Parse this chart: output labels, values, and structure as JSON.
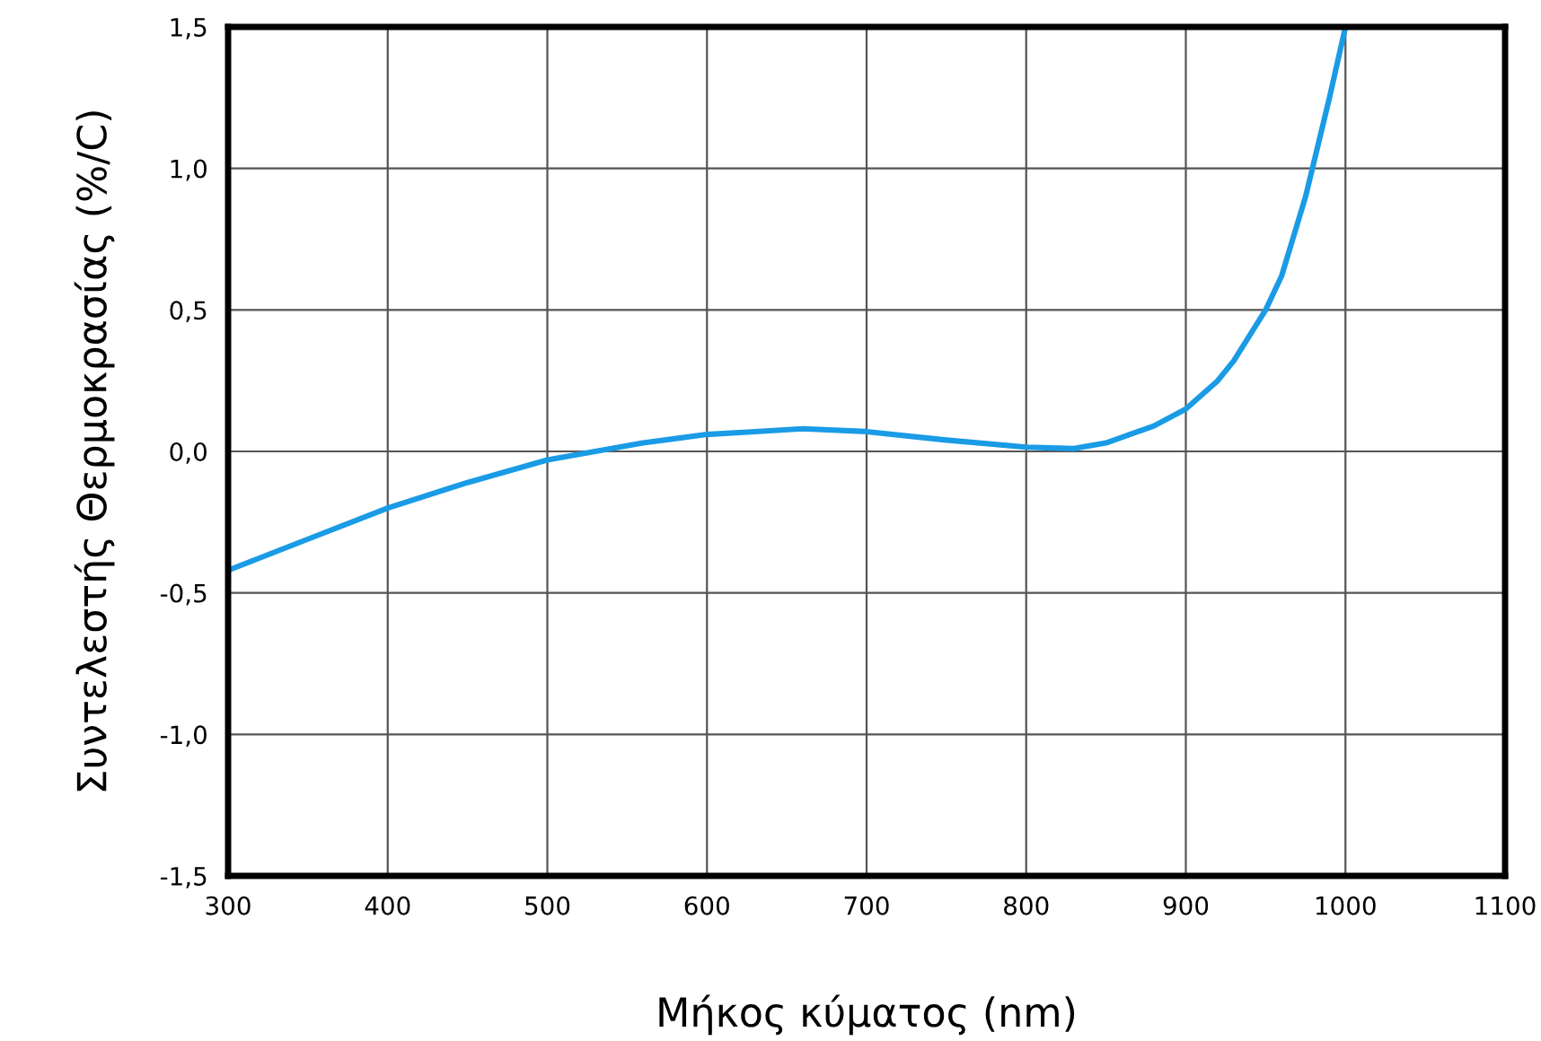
{
  "chart_data": {
    "type": "line",
    "xlabel": "Μήκος κύματος (nm)",
    "ylabel": "Συντελεστής Θερμοκρασίας (%/C)",
    "x": [
      300,
      350,
      400,
      450,
      500,
      530,
      560,
      600,
      630,
      660,
      700,
      750,
      800,
      830,
      850,
      870,
      880,
      900,
      920,
      930,
      950,
      960,
      975,
      990,
      1000
    ],
    "series": [
      {
        "color": "#1a9be6",
        "values": [
          -0.42,
          -0.31,
          -0.2,
          -0.11,
          -0.03,
          0.0,
          0.03,
          0.06,
          0.07,
          0.08,
          0.07,
          0.04,
          0.015,
          0.01,
          0.03,
          0.07,
          0.09,
          0.15,
          0.25,
          0.32,
          0.5,
          0.62,
          0.9,
          1.25,
          1.5
        ]
      }
    ],
    "xlim": [
      300,
      1100
    ],
    "xticks": [
      300,
      400,
      500,
      600,
      700,
      800,
      900,
      1000,
      1100
    ],
    "ylim": [
      -1.5,
      1.5
    ],
    "yticks": [
      {
        "value": -1.5,
        "label": "-1,5"
      },
      {
        "value": -1.0,
        "label": "-1,0"
      },
      {
        "value": -0.5,
        "label": "-0,5"
      },
      {
        "value": 0.0,
        "label": "0,0"
      },
      {
        "value": 0.5,
        "label": "0,5"
      },
      {
        "value": 1.0,
        "label": "1,0"
      },
      {
        "value": 1.5,
        "label": "1,5"
      }
    ],
    "grid": true,
    "marker": "none",
    "line_style": "solid",
    "legend": false
  }
}
